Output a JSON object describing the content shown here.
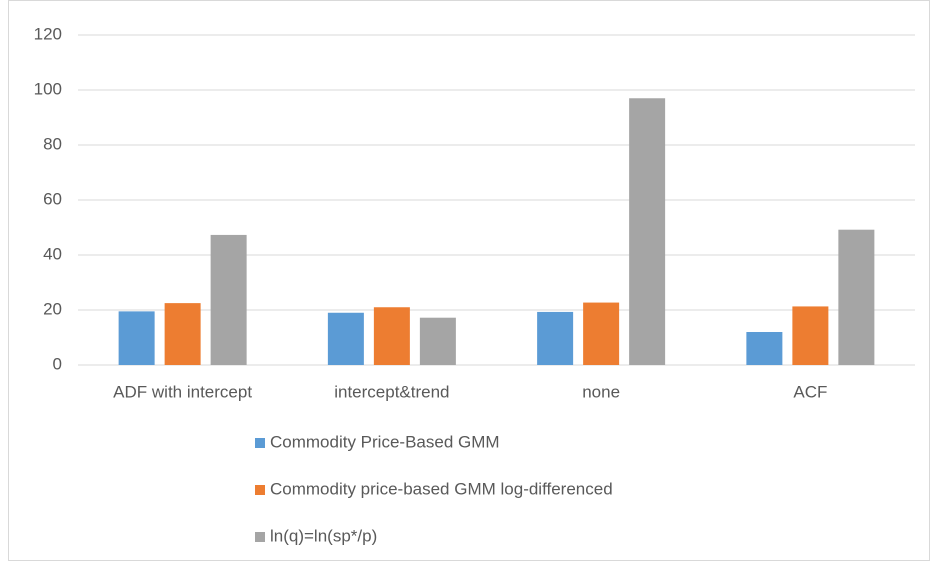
{
  "chart_data": {
    "type": "bar",
    "categories": [
      "ADF with intercept",
      "intercept&trend",
      "none",
      "ACF"
    ],
    "series": [
      {
        "name": "Commodity Price-Based GMM",
        "color": "#5b9bd5",
        "values": [
          19.5,
          19,
          19.3,
          12
        ]
      },
      {
        "name": "Commodity price-based GMM log-differenced",
        "color": "#ed7d31",
        "values": [
          22.5,
          21,
          22.7,
          21.3
        ]
      },
      {
        "name": "ln(q)=ln(sp*/p)",
        "color": "#a5a5a5",
        "values": [
          47.3,
          17.2,
          97,
          49.2
        ]
      }
    ],
    "ylim": [
      0,
      120
    ],
    "yticks": [
      0,
      20,
      40,
      60,
      80,
      100,
      120
    ],
    "grid": true
  }
}
